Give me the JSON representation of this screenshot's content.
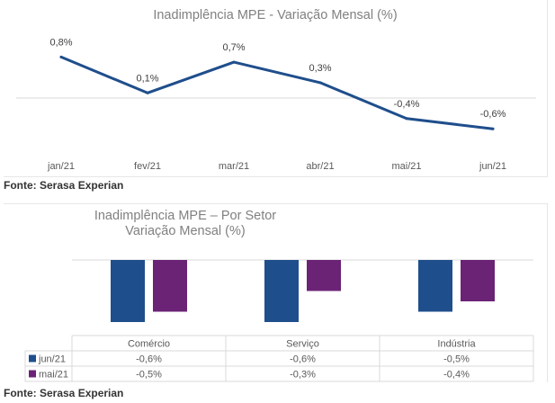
{
  "source_top": "Fonte: Serasa Experian",
  "source_bottom": "Fonte: Serasa Experian",
  "chart_data": [
    {
      "type": "line",
      "title": "Inadimplência MPE - Variação Mensal (%)",
      "categories": [
        "jan/21",
        "fev/21",
        "mar/21",
        "abr/21",
        "mai/21",
        "jun/21"
      ],
      "values": [
        0.8,
        0.1,
        0.7,
        0.3,
        -0.4,
        -0.6
      ],
      "data_labels": [
        "0,8%",
        "0,1%",
        "0,7%",
        "0,3%",
        "-0,4%",
        "-0,6%"
      ],
      "ylim": [
        -1.0,
        1.0
      ],
      "color": "#1f4e8c",
      "grid": false
    },
    {
      "type": "bar",
      "title_line1": "Inadimplência MPE – Por Setor",
      "title_line2": "Variação Mensal (%)",
      "categories": [
        "Comércio",
        "Serviço",
        "Indústria"
      ],
      "series": [
        {
          "name": "jun/21",
          "color": "#1f4e8c",
          "values": [
            -0.6,
            -0.6,
            -0.5
          ],
          "labels": [
            "-0,6%",
            "-0,6%",
            "-0,5%"
          ]
        },
        {
          "name": "mai/21",
          "color": "#6b2375",
          "values": [
            -0.5,
            -0.3,
            -0.4
          ],
          "labels": [
            "-0,5%",
            "-0,3%",
            "-0,4%"
          ]
        }
      ],
      "ylim": [
        -0.6,
        0.0
      ],
      "legend": "data-table"
    }
  ]
}
